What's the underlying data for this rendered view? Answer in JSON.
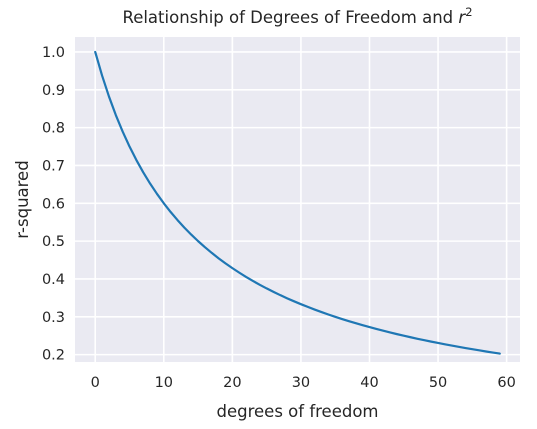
{
  "chart_data": {
    "type": "line",
    "title": "Relationship of Degrees of Freedom and ",
    "title_math": "r",
    "title_superscript": "2",
    "xlabel": "degrees of freedom",
    "ylabel": "r-squared",
    "xlim": [
      -2.95,
      61.95
    ],
    "ylim": [
      0.1805,
      1.0395
    ],
    "xticks": [
      0,
      10,
      20,
      30,
      40,
      50,
      60
    ],
    "yticks": [
      0.2,
      0.3,
      0.4,
      0.5,
      0.6,
      0.7,
      0.8,
      0.9,
      1.0
    ],
    "xtick_labels": [
      "0",
      "10",
      "20",
      "30",
      "40",
      "50",
      "60"
    ],
    "ytick_labels": [
      "0.2",
      "0.3",
      "0.4",
      "0.5",
      "0.6",
      "0.7",
      "0.8",
      "0.9",
      "1.0"
    ],
    "grid": true,
    "series": [
      {
        "color": "#1f77b4",
        "x": [
          0,
          1,
          2,
          3,
          4,
          5,
          6,
          7,
          8,
          9,
          10,
          11,
          12,
          13,
          14,
          15,
          16,
          17,
          18,
          19,
          20,
          21,
          22,
          23,
          24,
          25,
          26,
          27,
          28,
          29,
          30,
          31,
          32,
          33,
          34,
          35,
          36,
          37,
          38,
          39,
          40,
          41,
          42,
          43,
          44,
          45,
          46,
          47,
          48,
          49,
          50,
          51,
          52,
          53,
          54,
          55,
          56,
          57,
          58,
          59
        ],
        "values": [
          1.0,
          0.9375,
          0.8824,
          0.8333,
          0.7895,
          0.75,
          0.7143,
          0.6818,
          0.6522,
          0.625,
          0.6,
          0.5769,
          0.5556,
          0.5357,
          0.5172,
          0.5,
          0.4839,
          0.4688,
          0.4545,
          0.4412,
          0.4286,
          0.4167,
          0.4054,
          0.3947,
          0.3846,
          0.375,
          0.3659,
          0.3571,
          0.3488,
          0.3409,
          0.3333,
          0.3261,
          0.3191,
          0.3125,
          0.3061,
          0.3,
          0.2941,
          0.2885,
          0.283,
          0.2778,
          0.2727,
          0.2679,
          0.2632,
          0.2586,
          0.2542,
          0.25,
          0.2459,
          0.2419,
          0.2381,
          0.2344,
          0.2308,
          0.2273,
          0.2239,
          0.2206,
          0.2174,
          0.2143,
          0.2113,
          0.2083,
          0.2055,
          0.2027
        ]
      }
    ]
  },
  "colors": {
    "plot_background": "#eaeaf2",
    "grid": "#ffffff",
    "line": "#1f77b4"
  }
}
